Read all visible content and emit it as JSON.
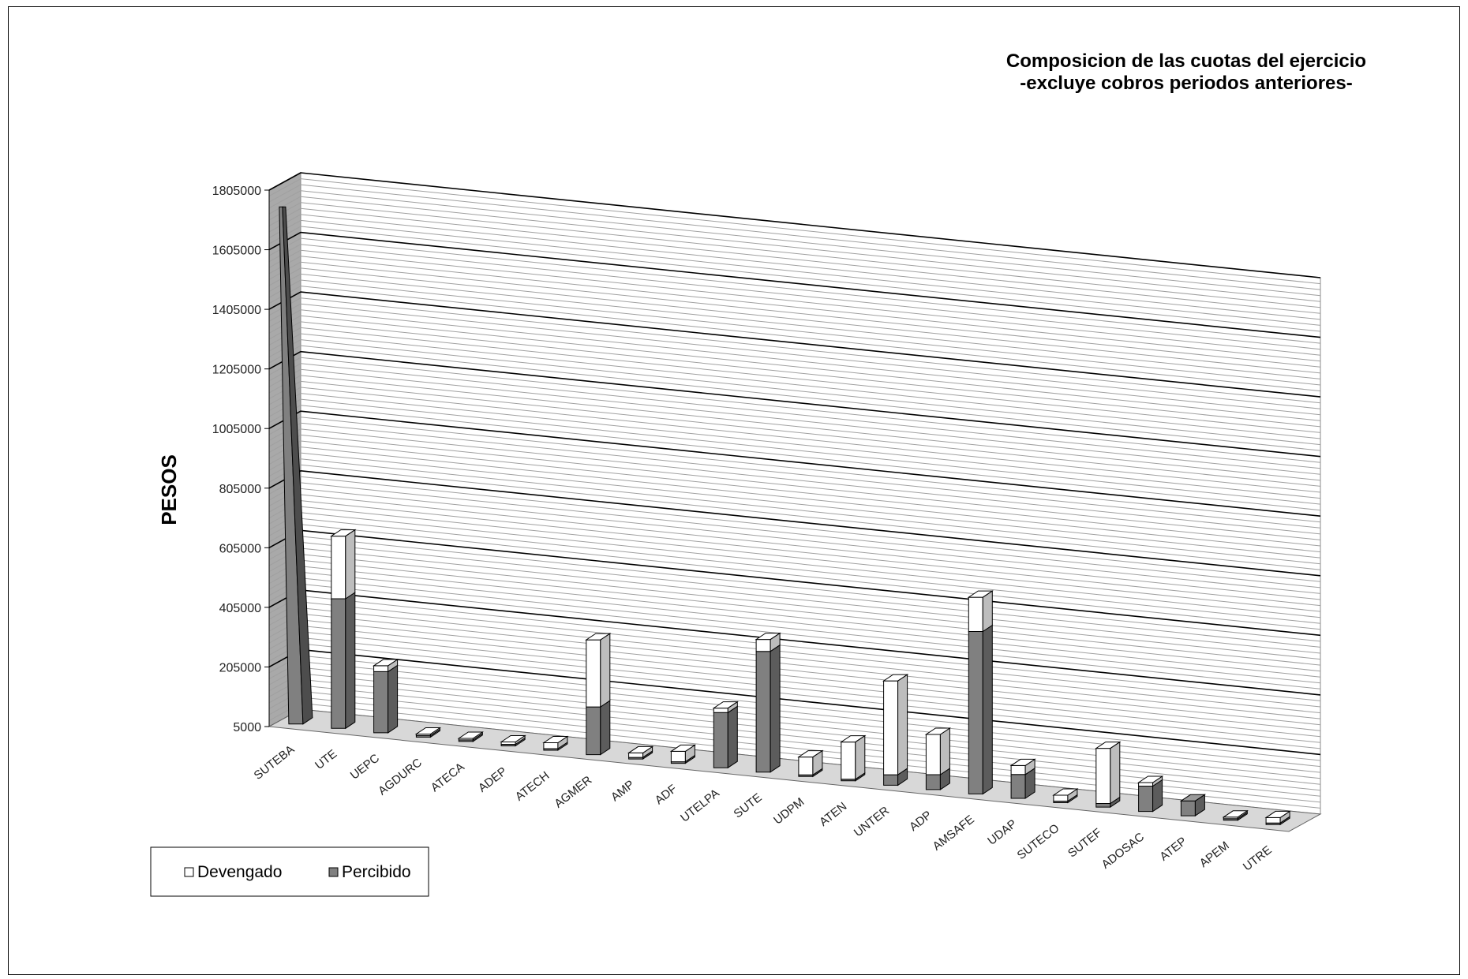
{
  "chart_data": {
    "type": "bar",
    "stacked": true,
    "three_d": true,
    "title_lines": [
      "Composicion de las cuotas del ejercicio",
      "-excluye cobros periodos anteriores-"
    ],
    "xlabel": "",
    "ylabel": "PESOS",
    "ylim": [
      5000,
      1805000
    ],
    "yticks": [
      5000,
      205000,
      405000,
      605000,
      805000,
      1005000,
      1205000,
      1405000,
      1605000,
      1805000
    ],
    "ytick_labels": [
      "5000",
      "205000",
      "405000",
      "605000",
      "805000",
      "1005000",
      "1205000",
      "1405000",
      "1605000",
      "1805000"
    ],
    "grid": true,
    "legend_position": "bottom-left",
    "categories": [
      "SUTEBA",
      "UTE",
      "UEPC",
      "AGDURC",
      "ATECA",
      "ADEP",
      "ATECH",
      "AGMER",
      "AMP",
      "ADF",
      "UTELPA",
      "SUTE",
      "UDPM",
      "ATEN",
      "UNTER",
      "ADP",
      "AMSAFE",
      "UDAP",
      "SUTECO",
      "SUTEF",
      "ADOSAC",
      "ATEP",
      "APEM",
      "UTRE"
    ],
    "series": [
      {
        "name": "Percibido",
        "color": "#808080",
        "values": [
          1735000,
          435000,
          205000,
          5000,
          5000,
          5000,
          5000,
          160000,
          5000,
          5000,
          185000,
          405000,
          5000,
          5000,
          35000,
          50000,
          545000,
          80000,
          5000,
          12000,
          85000,
          50000,
          5000,
          5000
        ]
      },
      {
        "name": "Devengado",
        "color": "#ffffff",
        "values": [
          0,
          210000,
          20000,
          5000,
          5000,
          8000,
          20000,
          225000,
          15000,
          35000,
          15000,
          40000,
          60000,
          125000,
          315000,
          135000,
          115000,
          30000,
          20000,
          185000,
          12000,
          0,
          5000,
          18000
        ]
      }
    ]
  },
  "legend": {
    "devengado_label": "Devengado",
    "percibido_label": "Percibido"
  },
  "colors": {
    "percibido_front": "#808080",
    "devengado_front": "#ffffff",
    "wall": "#a9a9a9",
    "grid_major": "#000000",
    "grid_minor": "#a0a0a0"
  }
}
